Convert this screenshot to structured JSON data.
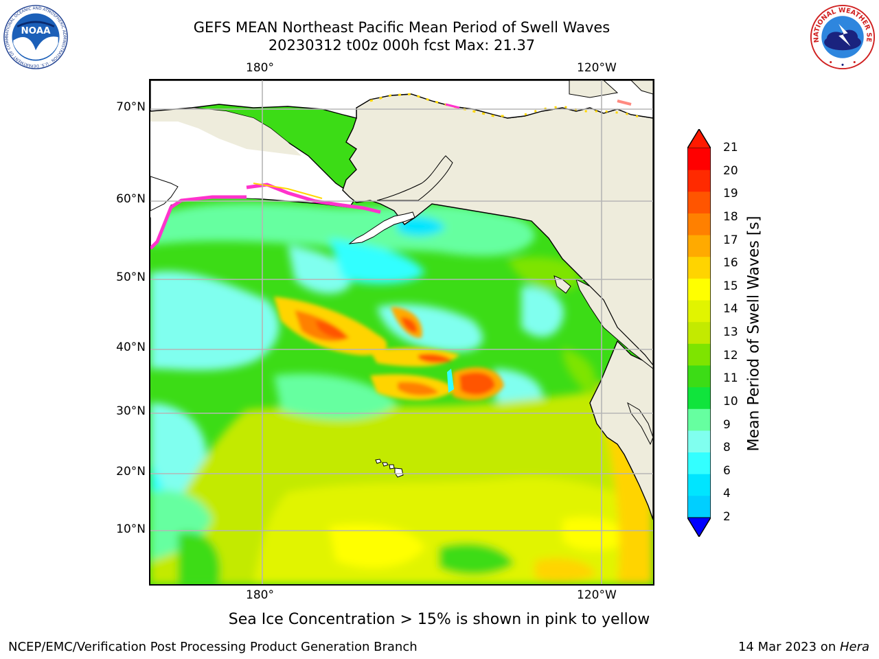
{
  "title": {
    "line1": "GEFS MEAN Northeast Pacific Mean Period of Swell Waves",
    "line2": "20230312 t00z 000h fcst   Max: 21.37"
  },
  "map": {
    "lon_labels_top": [
      "180°",
      "120°W"
    ],
    "lon_labels_bottom": [
      "180°",
      "120°W"
    ],
    "lat_labels": [
      "70°N",
      "60°N",
      "50°N",
      "40°N",
      "30°N",
      "20°N",
      "10°N"
    ],
    "land_color": "#eeecdc",
    "ice_color_range": [
      "#ff33cc",
      "#ffd700"
    ]
  },
  "colorbar": {
    "label": "Mean Period of Swell Waves [s]",
    "ticks": [
      "21",
      "20",
      "19",
      "18",
      "17",
      "16",
      "15",
      "14",
      "13",
      "12",
      "11",
      "10",
      "9",
      "8",
      "6",
      "4",
      "2"
    ],
    "colors_top_to_bottom": [
      "#ff0000",
      "#ff2a00",
      "#ff5500",
      "#ff8000",
      "#ffaa00",
      "#ffd400",
      "#ffff00",
      "#e1f400",
      "#c3ea00",
      "#7ee400",
      "#3cdc16",
      "#10e43c",
      "#66ffa0",
      "#80ffef",
      "#33ffff",
      "#00e5ff",
      "#00cfff",
      "#0060ff"
    ],
    "extend_top_color": "#ff1a00",
    "extend_bottom_color": "#0000ff"
  },
  "note": "Sea Ice Concentration > 15% is shown in pink to yellow",
  "footer": {
    "left": "NCEP/EMC/Verification Post Processing Product Generation Branch",
    "right_date": "14 Mar 2023 on ",
    "right_machine": "Hera"
  },
  "logos": {
    "noaa_text": "NOAA",
    "noaa_ring_text": "NATIONAL OCEANIC AND ATMOSPHERIC ADMINISTRATION · U.S. DEPARTMENT OF COMMERCE",
    "nws_ring_text": "NATIONAL WEATHER SERVICE"
  }
}
